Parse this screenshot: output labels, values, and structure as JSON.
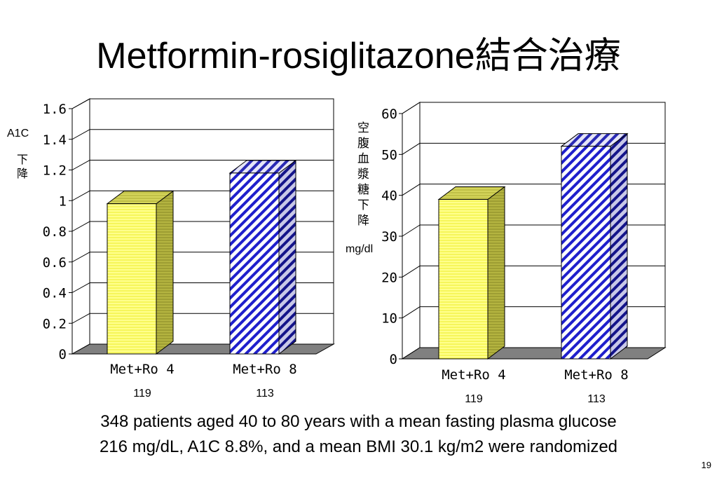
{
  "slide": {
    "title": "Metformin-rosiglitazone結合治療",
    "footnote_line1": "348 patients aged 40 to 80 years with a mean  fasting plasma glucose",
    "footnote_line2": "216 mg/dL,  A1C 8.8%, and a mean BMI 30.1 kg/m2 were randomized",
    "page_number": "19"
  },
  "colors": {
    "met_ro_4_bar": "#ffff80",
    "met_ro_8_bar": "#1f1fcc",
    "floor": "#808080",
    "gridline": "#000000"
  },
  "chart_data": [
    {
      "type": "bar",
      "title": "",
      "ylabel": "A1C 下降",
      "ylim": [
        0,
        1.6
      ],
      "yticks": [
        "0",
        "0.2",
        "0.4",
        "0.6",
        "0.8",
        "1",
        "1.2",
        "1.4",
        "1.6"
      ],
      "categories": [
        "Met+Ro 4",
        "Met+Ro 8"
      ],
      "sample_sizes": [
        "119",
        "113"
      ],
      "values": [
        0.98,
        1.18
      ],
      "grid": true,
      "legend": "none"
    },
    {
      "type": "bar",
      "title": "",
      "ylabel": "空腹血漿糖下降",
      "yunit": "mg/dl",
      "ylim": [
        0,
        60
      ],
      "yticks": [
        "0",
        "10",
        "20",
        "30",
        "40",
        "50",
        "60"
      ],
      "categories": [
        "Met+Ro 4",
        "Met+Ro 8"
      ],
      "sample_sizes": [
        "119",
        "113"
      ],
      "values": [
        39,
        52
      ],
      "grid": true,
      "legend": "none"
    }
  ]
}
